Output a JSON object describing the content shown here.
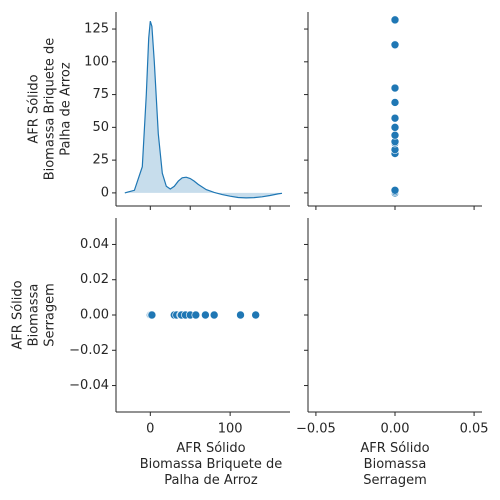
{
  "chart_data": {
    "type": "pairplot",
    "variables": [
      {
        "key": "rice",
        "label_lines": [
          "AFR Sólido",
          "Biomassa Briquete de",
          "Palha de Arroz"
        ]
      },
      {
        "key": "saw",
        "label_lines": [
          "AFR Sólido",
          "Biomassa",
          "Serragem"
        ]
      }
    ],
    "rice_values": [
      0,
      0,
      1,
      2,
      30,
      33,
      38,
      39,
      44,
      50,
      57,
      69,
      80,
      113,
      132
    ],
    "saw_values": [
      0,
      0,
      0,
      0,
      0,
      0,
      0,
      0,
      0,
      0,
      0,
      0,
      0,
      0,
      0
    ],
    "kde": {
      "x": [
        -32,
        -20,
        -10,
        -5,
        -2,
        0,
        2,
        5,
        10,
        15,
        20,
        25,
        30,
        35,
        40,
        45,
        50,
        55,
        60,
        70,
        80,
        90,
        100,
        110,
        120,
        130,
        140,
        150,
        160,
        165
      ],
      "y": [
        0,
        2,
        20,
        75,
        118,
        131,
        127,
        100,
        45,
        15,
        5,
        3,
        5,
        9,
        11.5,
        12,
        11,
        9,
        6.5,
        2.5,
        0.4,
        -1.3,
        -2.5,
        -3.5,
        -3.8,
        -3.6,
        -3,
        -2,
        -0.8,
        -0.3
      ]
    },
    "panels": {
      "top_left": {
        "type": "area",
        "x": "rice",
        "ylim": [
          -10,
          138
        ],
        "yticks": [
          "0",
          "25",
          "50",
          "75",
          "100",
          "125"
        ],
        "ytick_values": [
          0,
          25,
          50,
          75,
          100,
          125
        ]
      },
      "top_right": {
        "type": "scatter",
        "x": "saw",
        "y": "rice"
      },
      "bottom_left": {
        "type": "scatter",
        "x": "rice",
        "y": "saw",
        "ylim": [
          -0.055,
          0.055
        ],
        "yticks": [
          "0.04",
          "0.02",
          "0.00",
          "−0.02",
          "−0.04"
        ],
        "ytick_values": [
          0.04,
          0.02,
          0,
          -0.02,
          -0.04
        ]
      },
      "bottom_right": {
        "type": "empty"
      }
    },
    "x_axes": {
      "rice": {
        "xlim": [
          -43,
          175
        ],
        "ticks": [
          "0",
          "100"
        ],
        "tick_values": [
          0,
          100
        ],
        "minor_tick_values": [
          50,
          150
        ]
      },
      "saw": {
        "xlim": [
          -0.055,
          0.055
        ],
        "ticks": [
          "−0.05",
          "0.00",
          "0.05"
        ],
        "tick_values": [
          -0.05,
          0,
          0.05
        ]
      }
    },
    "colors": {
      "marker": "#1f77b4",
      "line": "#1f77b4",
      "fill": "#1f77b4",
      "axis": "#262626",
      "marker_edge": "#ffffff"
    },
    "grid": false,
    "legend": "none"
  }
}
